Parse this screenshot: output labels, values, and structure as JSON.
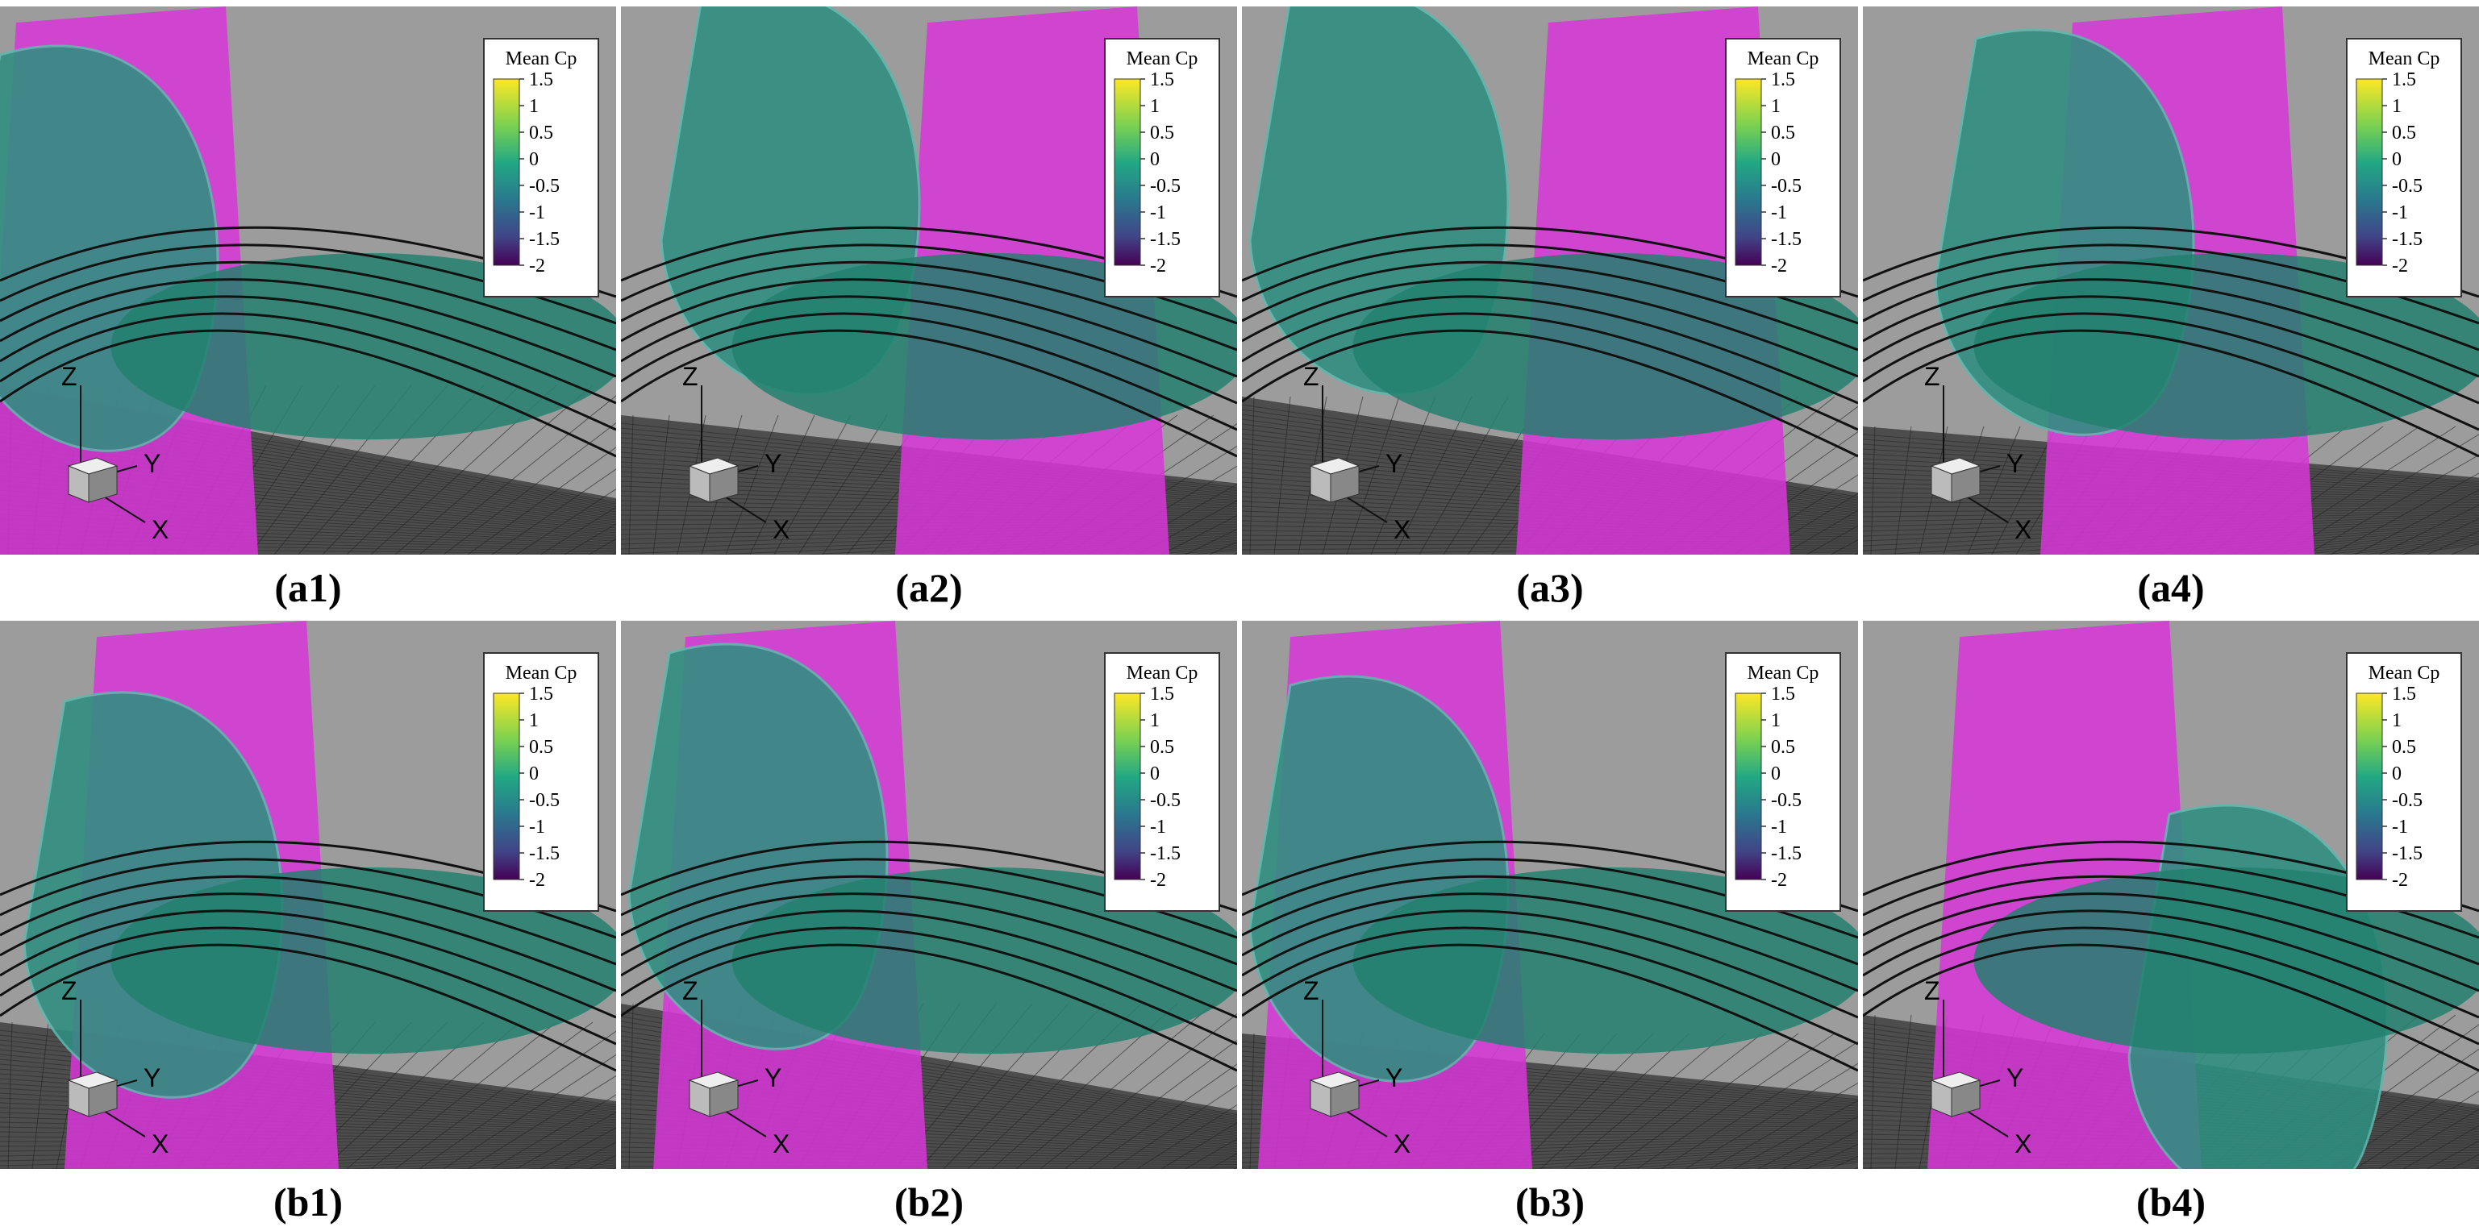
{
  "panels": [
    {
      "label": "(a1)"
    },
    {
      "label": "(a2)"
    },
    {
      "label": "(a3)"
    },
    {
      "label": "(a4)"
    },
    {
      "label": "(b1)"
    },
    {
      "label": "(b2)"
    },
    {
      "label": "(b3)"
    },
    {
      "label": "(b4)"
    }
  ],
  "colorbar": {
    "title": "Mean Cp",
    "ticks": [
      "1.5",
      "1",
      "0.5",
      "0",
      "-0.5",
      "-1",
      "-1.5",
      "-2"
    ]
  },
  "axes": {
    "z": "Z",
    "y": "Y",
    "x": "X"
  }
}
